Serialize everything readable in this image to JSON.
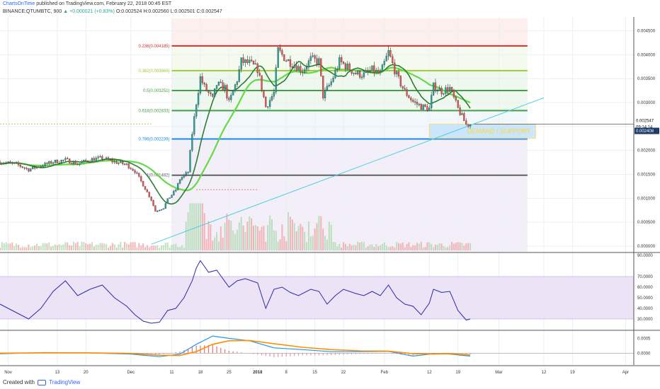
{
  "header": {
    "brand": "ChartsOnTime",
    "published": "published on TradingView.com, February 22, 2018 00:45 EST",
    "symbol": "BINANCE:QTUMBTC, 900",
    "change": "▲ +0.000021 (+0.83%)",
    "ohlc": "O:0.002524 H:0.002560 L:0.002501 C:0.002547"
  },
  "footer": {
    "created_with": "Created with",
    "brand": "TradingView"
  },
  "chart_data": {
    "type": "candlestick",
    "price_axis": [
      "0.004500",
      "0.004000",
      "0.003500",
      "0.003000",
      "0.002500",
      "0.002000",
      "0.001500",
      "0.001000",
      "0.000500",
      "0.000000"
    ],
    "price_ylim": [
      0.0,
      0.0047
    ],
    "x_axis": [
      "Nov",
      "13",
      "20",
      "Dec",
      "11",
      "18",
      "25",
      "2018",
      "8",
      "15",
      "22",
      "Feb",
      "12",
      "19",
      "Mar",
      "12",
      "19",
      "Apr"
    ],
    "x_range": [
      "2017-10-30",
      "2018-04-03"
    ],
    "last_price": "0.002547",
    "countdown": "09:14:14",
    "support_price": "0.002408",
    "annotation": "DEMAND / SUPPORT",
    "fibonacci": [
      {
        "label": "0.236(0.004185)",
        "level": 0.004185,
        "color": "#d32f2f"
      },
      {
        "label": "0.382(0.003668)",
        "level": 0.003668,
        "color": "#9ccc3a"
      },
      {
        "label": "0.5(0.003251)",
        "level": 0.003251,
        "color": "#43a047"
      },
      {
        "label": "0.618(0.002833)",
        "level": 0.002833,
        "color": "#43a047"
      },
      {
        "label": "0.786(0.002239)",
        "level": 0.002239,
        "color": "#1e88e5"
      },
      {
        "label": "1(0.001482)",
        "level": 0.001482,
        "color": "#616161"
      }
    ],
    "close": [
      [
        "2017-10-30",
        0.00176
      ],
      [
        "2017-11-03",
        0.00171
      ],
      [
        "2017-11-06",
        0.0016
      ],
      [
        "2017-11-09",
        0.00168
      ],
      [
        "2017-11-12",
        0.00176
      ],
      [
        "2017-11-15",
        0.0018
      ],
      [
        "2017-11-18",
        0.00172
      ],
      [
        "2017-11-21",
        0.00181
      ],
      [
        "2017-11-24",
        0.00184
      ],
      [
        "2017-11-27",
        0.00176
      ],
      [
        "2017-11-30",
        0.0017
      ],
      [
        "2017-12-02",
        0.00157
      ],
      [
        "2017-12-04",
        0.00128
      ],
      [
        "2017-12-06",
        0.00097
      ],
      [
        "2017-12-07",
        0.00073
      ],
      [
        "2017-12-09",
        0.0008
      ],
      [
        "2017-12-10",
        0.00097
      ],
      [
        "2017-12-12",
        0.00118
      ],
      [
        "2017-12-13",
        0.0014
      ],
      [
        "2017-12-15",
        0.00155
      ],
      [
        "2017-12-16",
        0.00236
      ],
      [
        "2017-12-17",
        0.003
      ],
      [
        "2017-12-18",
        0.00352
      ],
      [
        "2017-12-19",
        0.00332
      ],
      [
        "2017-12-21",
        0.00307
      ],
      [
        "2017-12-22",
        0.00338
      ],
      [
        "2017-12-24",
        0.00331
      ],
      [
        "2017-12-25",
        0.00299
      ],
      [
        "2017-12-27",
        0.00348
      ],
      [
        "2017-12-28",
        0.00386
      ],
      [
        "2017-12-30",
        0.00382
      ],
      [
        "2018-01-01",
        0.0037
      ],
      [
        "2018-01-03",
        0.00291
      ],
      [
        "2018-01-05",
        0.0032
      ],
      [
        "2018-01-06",
        0.00409
      ],
      [
        "2018-01-08",
        0.0039
      ],
      [
        "2018-01-10",
        0.00379
      ],
      [
        "2018-01-12",
        0.00367
      ],
      [
        "2018-01-14",
        0.0039
      ],
      [
        "2018-01-16",
        0.00386
      ],
      [
        "2018-01-17",
        0.00314
      ],
      [
        "2018-01-19",
        0.00343
      ],
      [
        "2018-01-21",
        0.00386
      ],
      [
        "2018-01-23",
        0.00374
      ],
      [
        "2018-01-25",
        0.00361
      ],
      [
        "2018-01-27",
        0.00358
      ],
      [
        "2018-01-29",
        0.00368
      ],
      [
        "2018-01-31",
        0.00359
      ],
      [
        "2018-02-02",
        0.00405
      ],
      [
        "2018-02-04",
        0.00356
      ],
      [
        "2018-02-06",
        0.00323
      ],
      [
        "2018-02-08",
        0.00302
      ],
      [
        "2018-02-10",
        0.00292
      ],
      [
        "2018-02-12",
        0.00287
      ],
      [
        "2018-02-13",
        0.00334
      ],
      [
        "2018-02-15",
        0.00324
      ],
      [
        "2018-02-17",
        0.0033
      ],
      [
        "2018-02-19",
        0.00287
      ],
      [
        "2018-02-21",
        0.00254
      ],
      [
        "2018-02-22",
        0.002547
      ]
    ],
    "rsi": {
      "axis": [
        "90.0000",
        "70.0000",
        "60.0000",
        "50.0000",
        "40.0000",
        "30.0000"
      ],
      "ylim": [
        20,
        92
      ],
      "band": [
        30,
        70
      ],
      "values": [
        [
          "2017-10-30",
          44
        ],
        [
          "2017-11-03",
          36
        ],
        [
          "2017-11-06",
          30
        ],
        [
          "2017-11-09",
          40
        ],
        [
          "2017-11-12",
          56
        ],
        [
          "2017-11-15",
          66
        ],
        [
          "2017-11-18",
          52
        ],
        [
          "2017-11-21",
          58
        ],
        [
          "2017-11-24",
          62
        ],
        [
          "2017-11-27",
          50
        ],
        [
          "2017-11-30",
          42
        ],
        [
          "2017-12-02",
          34
        ],
        [
          "2017-12-04",
          28
        ],
        [
          "2017-12-06",
          26
        ],
        [
          "2017-12-08",
          27
        ],
        [
          "2017-12-10",
          38
        ],
        [
          "2017-12-12",
          40
        ],
        [
          "2017-12-14",
          50
        ],
        [
          "2017-12-16",
          66
        ],
        [
          "2017-12-17",
          78
        ],
        [
          "2017-12-18",
          85
        ],
        [
          "2017-12-20",
          74
        ],
        [
          "2017-12-22",
          76
        ],
        [
          "2017-12-25",
          60
        ],
        [
          "2017-12-27",
          66
        ],
        [
          "2017-12-29",
          68
        ],
        [
          "2018-01-01",
          64
        ],
        [
          "2018-01-03",
          40
        ],
        [
          "2018-01-05",
          58
        ],
        [
          "2018-01-07",
          60
        ],
        [
          "2018-01-09",
          55
        ],
        [
          "2018-01-11",
          52
        ],
        [
          "2018-01-14",
          58
        ],
        [
          "2018-01-16",
          56
        ],
        [
          "2018-01-18",
          44
        ],
        [
          "2018-01-20",
          52
        ],
        [
          "2018-01-22",
          58
        ],
        [
          "2018-01-25",
          54
        ],
        [
          "2018-01-27",
          52
        ],
        [
          "2018-01-29",
          56
        ],
        [
          "2018-01-31",
          52
        ],
        [
          "2018-02-02",
          62
        ],
        [
          "2018-02-04",
          50
        ],
        [
          "2018-02-06",
          44
        ],
        [
          "2018-02-08",
          42
        ],
        [
          "2018-02-10",
          34
        ],
        [
          "2018-02-12",
          45
        ],
        [
          "2018-02-13",
          58
        ],
        [
          "2018-02-15",
          55
        ],
        [
          "2018-02-17",
          56
        ],
        [
          "2018-02-19",
          38
        ],
        [
          "2018-02-21",
          29
        ],
        [
          "2018-02-22",
          30
        ]
      ]
    },
    "macd": {
      "axis": [
        "0.0005",
        "0.0000"
      ],
      "ylim": [
        -0.0004,
        0.00075
      ],
      "macd": [
        [
          "2017-10-30",
          -2e-05
        ],
        [
          "2017-11-10",
          2e-05
        ],
        [
          "2017-11-20",
          1e-05
        ],
        [
          "2017-12-01",
          -3e-05
        ],
        [
          "2017-12-08",
          -0.00012
        ],
        [
          "2017-12-13",
          -3e-05
        ],
        [
          "2017-12-17",
          0.0003
        ],
        [
          "2017-12-21",
          0.00058
        ],
        [
          "2017-12-25",
          0.0005
        ],
        [
          "2017-12-30",
          0.00042
        ],
        [
          "2018-01-05",
          0.00018
        ],
        [
          "2018-01-12",
          0.00012
        ],
        [
          "2018-01-19",
          5e-05
        ],
        [
          "2018-01-26",
          5e-05
        ],
        [
          "2018-02-02",
          6e-05
        ],
        [
          "2018-02-08",
          -0.0001
        ],
        [
          "2018-02-13",
          -2e-05
        ],
        [
          "2018-02-17",
          -3e-05
        ],
        [
          "2018-02-22",
          -0.0001
        ]
      ],
      "signal": [
        [
          "2017-10-30",
          0.0
        ],
        [
          "2017-11-10",
          1e-05
        ],
        [
          "2017-11-20",
          1e-05
        ],
        [
          "2017-12-01",
          -1e-05
        ],
        [
          "2017-12-08",
          -7e-05
        ],
        [
          "2017-12-13",
          -8e-05
        ],
        [
          "2017-12-17",
          5e-05
        ],
        [
          "2017-12-21",
          0.0003
        ],
        [
          "2017-12-25",
          0.00042
        ],
        [
          "2017-12-30",
          0.00043
        ],
        [
          "2018-01-05",
          0.00032
        ],
        [
          "2018-01-12",
          0.0002
        ],
        [
          "2018-01-19",
          0.00012
        ],
        [
          "2018-01-26",
          8e-05
        ],
        [
          "2018-02-02",
          7e-05
        ],
        [
          "2018-02-08",
          -2e-05
        ],
        [
          "2018-02-13",
          -3e-05
        ],
        [
          "2018-02-17",
          -2e-05
        ],
        [
          "2018-02-22",
          -6e-05
        ]
      ]
    }
  },
  "colors": {
    "up": "#26a69a",
    "down": "#ef5350",
    "rsi_line": "#2a2aa8",
    "macd_line": "#2196f3",
    "signal_line": "#ff8f00",
    "fast_ma": "#2e7d32",
    "slow_ma": "#66d94a",
    "trendline": "#4dd0e1"
  }
}
